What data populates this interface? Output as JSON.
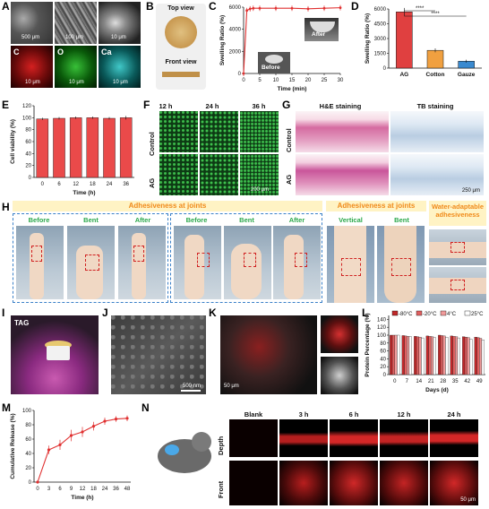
{
  "panels": {
    "A": {
      "letter": "A",
      "scales": [
        "500 μm",
        "100 μm",
        "10 μm",
        "10 μm",
        "10 μm",
        "10 μm"
      ],
      "elements": [
        "C",
        "O",
        "Ca"
      ]
    },
    "B": {
      "letter": "B",
      "top": "Top view",
      "front": "Front view"
    },
    "C": {
      "letter": "C",
      "before": "Before",
      "after": "After"
    },
    "D": {
      "letter": "D",
      "sig": "****"
    },
    "E": {
      "letter": "E"
    },
    "F": {
      "letter": "F",
      "cols": [
        "12 h",
        "24 h",
        "36 h"
      ],
      "rows": [
        "Control",
        "AG"
      ],
      "scale": "200 μm"
    },
    "G": {
      "letter": "G",
      "cols": [
        "H&E staining",
        "TB staining"
      ],
      "rows": [
        "Control",
        "AG"
      ],
      "scale": "250 μm"
    },
    "H": {
      "letter": "H",
      "title1": "Adhesiveness at joints",
      "title2": "Adhesiveness at joints",
      "title3": "Water-adaptable adhesiveness",
      "group1": [
        "Before",
        "Bent",
        "After"
      ],
      "group2": [
        "Before",
        "Bent",
        "After"
      ],
      "group3": [
        "Vertical",
        "Bent"
      ]
    },
    "I": {
      "letter": "I",
      "tag": "TAG"
    },
    "J": {
      "letter": "J",
      "scale": "500 nm"
    },
    "K": {
      "letter": "K",
      "scale": "50 μm"
    },
    "L": {
      "letter": "L"
    },
    "M": {
      "letter": "M"
    },
    "N": {
      "letter": "N",
      "cols": [
        "Blank",
        "3 h",
        "6 h",
        "12 h",
        "24 h"
      ],
      "rows": [
        "Depth",
        "Front"
      ],
      "scale": "50 μm"
    }
  },
  "chart_data": [
    {
      "id": "C",
      "type": "line",
      "x": [
        0,
        1,
        2,
        3,
        5,
        10,
        15,
        20,
        25,
        30
      ],
      "values": [
        0,
        5700,
        5850,
        5900,
        5900,
        5900,
        5900,
        5850,
        5900,
        5950
      ],
      "xlabel": "Time (min)",
      "ylabel": "Swelling Ratio (%)",
      "xlim": [
        0,
        30
      ],
      "ylim": [
        0,
        6000
      ],
      "xticks": [
        0,
        5,
        10,
        15,
        20,
        25,
        30
      ],
      "yticks": [
        0,
        2000,
        4000,
        6000
      ],
      "color": "#e03030"
    },
    {
      "id": "D",
      "type": "bar",
      "categories": [
        "AG",
        "Cotton",
        "Gauze"
      ],
      "values": [
        5700,
        1800,
        700
      ],
      "errors": [
        400,
        200,
        150
      ],
      "colors": [
        "#e04040",
        "#f0a040",
        "#3a8ad0"
      ],
      "ylabel": "Swelling Ratio (%)",
      "ylim": [
        0,
        6000
      ],
      "yticks": [
        0,
        1500,
        3000,
        4500,
        6000
      ]
    },
    {
      "id": "E",
      "type": "bar",
      "categories": [
        "0",
        "6",
        "12",
        "18",
        "24",
        "36"
      ],
      "values": [
        98,
        99,
        100,
        100,
        99,
        100
      ],
      "errors": [
        2,
        2,
        2,
        2,
        2,
        3
      ],
      "color": "#ea4a4a",
      "xlabel": "Time (h)",
      "ylabel": "Cell viability (%)",
      "ylim": [
        0,
        120
      ],
      "yticks": [
        0,
        20,
        40,
        60,
        80,
        100,
        120
      ]
    },
    {
      "id": "L",
      "type": "bar",
      "categories": [
        "0",
        "7",
        "14",
        "21",
        "28",
        "35",
        "42",
        "49"
      ],
      "series": [
        {
          "name": "-80°C",
          "values": [
            100,
            99,
            97,
            98,
            100,
            98,
            96,
            95
          ],
          "color": "#c0282a"
        },
        {
          "name": "-20°C",
          "values": [
            100,
            98,
            96,
            97,
            99,
            97,
            95,
            94
          ],
          "color": "#e06060"
        },
        {
          "name": "4°C",
          "values": [
            100,
            97,
            95,
            96,
            98,
            96,
            94,
            92
          ],
          "color": "#f09a9a"
        },
        {
          "name": "25°C",
          "values": [
            100,
            96,
            93,
            94,
            95,
            93,
            90,
            88
          ],
          "color": "#ffffff"
        }
      ],
      "xlabel": "Days (d)",
      "ylabel": "Protein Percentage (%)",
      "ylim": [
        0,
        150
      ],
      "yticks": [
        0,
        20,
        40,
        60,
        80,
        100,
        120,
        140
      ]
    },
    {
      "id": "M",
      "type": "line",
      "x": [
        0,
        3,
        6,
        9,
        12,
        18,
        24,
        36,
        48
      ],
      "values": [
        0,
        45,
        52,
        65,
        70,
        78,
        85,
        88,
        89
      ],
      "errors": [
        0,
        6,
        7,
        8,
        7,
        6,
        5,
        4,
        4
      ],
      "xlabel": "Time (h)",
      "ylabel": "Cumulative Release (%)",
      "ylim": [
        0,
        100
      ],
      "yticks": [
        0,
        20,
        40,
        60,
        80,
        100
      ],
      "color": "#e03030"
    }
  ]
}
